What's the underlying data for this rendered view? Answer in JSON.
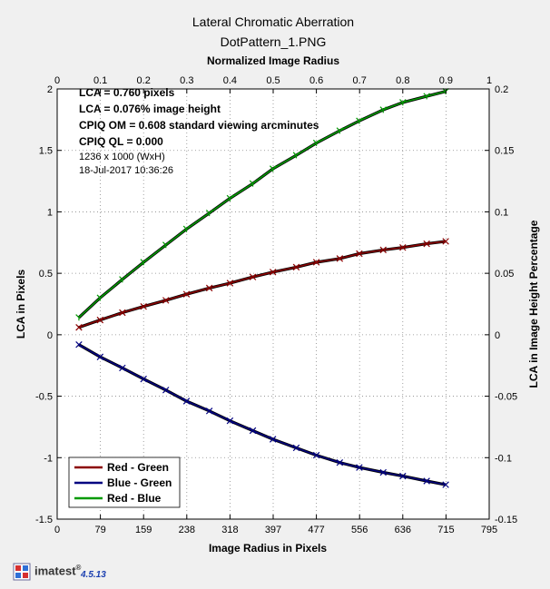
{
  "chart_data": {
    "type": "line",
    "title": "Lateral Chromatic Aberration",
    "subtitle": "DotPattern_1.PNG",
    "xlabel": "Image Radius in Pixels",
    "x2label": "Normalized Image Radius",
    "ylabel": "LCA in Pixels",
    "y2label": "LCA in Image Height Percentage",
    "xlim": [
      0,
      795
    ],
    "ylim": [
      -1.5,
      2
    ],
    "x2lim": [
      0,
      1
    ],
    "y2lim": [
      -0.15,
      0.2
    ],
    "x_ticks": [
      "0",
      "79",
      "159",
      "238",
      "318",
      "397",
      "477",
      "556",
      "636",
      "715",
      "795"
    ],
    "x2_ticks": [
      "0",
      "0.1",
      "0.2",
      "0.3",
      "0.4",
      "0.5",
      "0.6",
      "0.7",
      "0.8",
      "0.9",
      "1"
    ],
    "y_ticks": [
      "-1.5",
      "-1",
      "-0.5",
      "0",
      "0.5",
      "1",
      "1.5",
      "2"
    ],
    "y2_ticks": [
      "-0.15",
      "-0.1",
      "-0.05",
      "0",
      "0.05",
      "0.1",
      "0.15",
      "0.2"
    ],
    "grid": true,
    "legend_position": "bottom-left",
    "annotations": [
      "LCA = 0.760 pixels",
      "LCA = 0.076% image height",
      "CPIQ OM = 0.608 standard viewing arcminutes",
      "CPIQ QL = 0.000",
      "1236 x 1000 (WxH)",
      "18-Jul-2017 10:36:26"
    ],
    "series": [
      {
        "name": "Red - Green",
        "color": "#8b0000",
        "x": [
          40,
          79,
          120,
          159,
          200,
          238,
          280,
          318,
          360,
          397,
          440,
          477,
          520,
          556,
          600,
          636,
          680,
          715
        ],
        "y": [
          0.06,
          0.12,
          0.18,
          0.23,
          0.28,
          0.33,
          0.38,
          0.42,
          0.47,
          0.51,
          0.55,
          0.59,
          0.62,
          0.66,
          0.69,
          0.71,
          0.74,
          0.76
        ]
      },
      {
        "name": "Blue - Green",
        "color": "#000080",
        "x": [
          40,
          79,
          120,
          159,
          200,
          238,
          280,
          318,
          360,
          397,
          440,
          477,
          520,
          556,
          600,
          636,
          680,
          715
        ],
        "y": [
          -0.08,
          -0.18,
          -0.27,
          -0.36,
          -0.45,
          -0.54,
          -0.62,
          -0.7,
          -0.78,
          -0.85,
          -0.92,
          -0.98,
          -1.04,
          -1.08,
          -1.12,
          -1.15,
          -1.19,
          -1.22
        ]
      },
      {
        "name": "Red - Blue",
        "color": "#009900",
        "x": [
          40,
          79,
          120,
          159,
          200,
          238,
          280,
          318,
          360,
          397,
          440,
          477,
          520,
          556,
          600,
          636,
          680,
          715
        ],
        "y": [
          0.14,
          0.3,
          0.45,
          0.59,
          0.73,
          0.86,
          0.99,
          1.11,
          1.23,
          1.35,
          1.46,
          1.56,
          1.66,
          1.74,
          1.83,
          1.89,
          1.94,
          1.98
        ]
      }
    ]
  },
  "footer": {
    "brand": "imatest",
    "brand_mark": "®",
    "version": "4.5.13"
  }
}
